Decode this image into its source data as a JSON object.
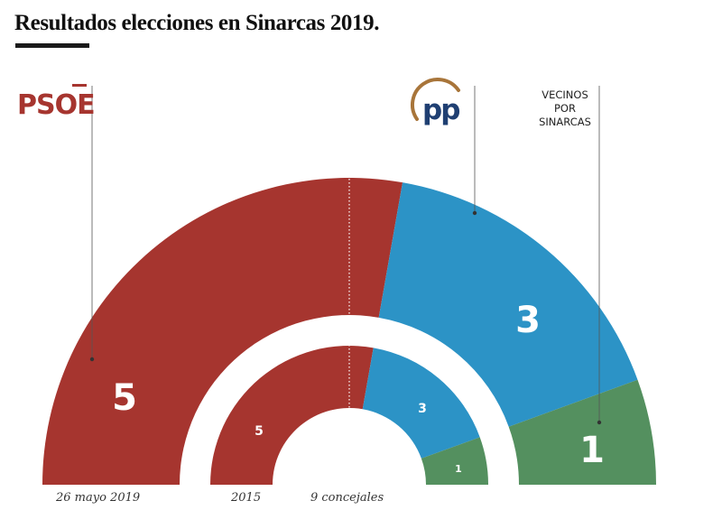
{
  "title": "Resultados elecciones en Sinarcas 2019.",
  "colors": {
    "psoe": "#a6352f",
    "pp": "#2c93c6",
    "vecinos": "#54905f",
    "pp_logo_arc": "#a8753a",
    "pp_logo_text": "#1f3f72"
  },
  "icons": {
    "psoe_logo": "psoe-logo",
    "pp_logo": "pp-logo"
  },
  "chart_data": {
    "type": "pie",
    "subtype": "semicircle-parliament",
    "total_seats": 9,
    "total_label": "9 concejales",
    "elections": [
      {
        "label": "26 mayo 2019",
        "ring": "outer",
        "parties": [
          {
            "party": "PSOE",
            "seats": 5,
            "color": "#a6352f"
          },
          {
            "party": "PP",
            "seats": 3,
            "color": "#2c93c6"
          },
          {
            "party": "Vecinos por Sinarcas",
            "seats": 1,
            "color": "#54905f"
          }
        ]
      },
      {
        "label": "2015",
        "ring": "inner",
        "parties": [
          {
            "party": "PSOE",
            "seats": 5,
            "color": "#a6352f"
          },
          {
            "party": "PP",
            "seats": 3,
            "color": "#2c93c6"
          },
          {
            "party": "Vecinos por Sinarcas",
            "seats": 1,
            "color": "#54905f"
          }
        ]
      }
    ],
    "party_labels": {
      "psoe": "PSOE",
      "pp": "PP",
      "vecinos": [
        "VECINOS",
        "POR",
        "SINARCAS"
      ]
    }
  }
}
